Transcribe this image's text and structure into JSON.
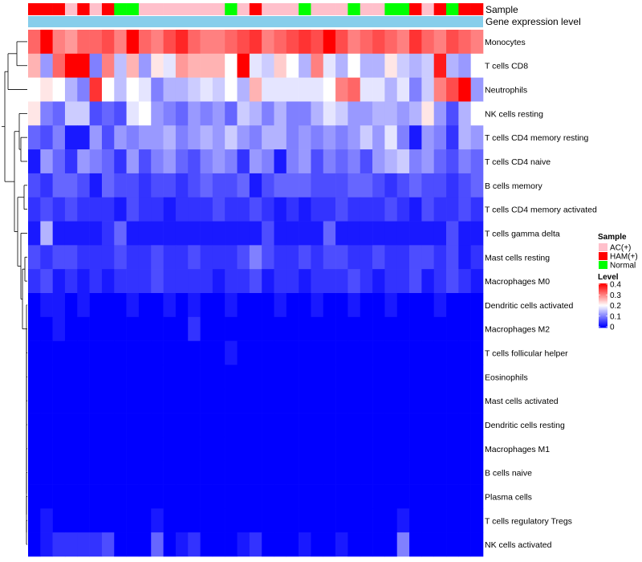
{
  "chart_data": {
    "type": "heatmap",
    "annotations": {
      "sample_label": "Sample",
      "expression_label": "Gene expression level"
    },
    "rows": [
      "Monocytes",
      "T cells CD8",
      "Neutrophils",
      "NK cells resting",
      "T cells CD4 memory resting",
      "T cells CD4 naive",
      "B cells memory",
      "T cells CD4 memory activated",
      "T cells gamma delta",
      "Mast cells resting",
      "Macrophages M0",
      "Dendritic cells activated",
      "Macrophages M2",
      "T cells follicular helper",
      "Eosinophils",
      "Mast cells activated",
      "Dendritic cells resting",
      "Macrophages M1",
      "B cells naive",
      "Plasma cells",
      "T cells regulatory  Tregs",
      "NK cells activated"
    ],
    "sample_groups": [
      "HAM",
      "HAM",
      "HAM",
      "AC",
      "HAM",
      "AC",
      "HAM",
      "N",
      "N",
      "AC",
      "AC",
      "AC",
      "AC",
      "AC",
      "AC",
      "AC",
      "N",
      "AC",
      "HAM",
      "AC",
      "AC",
      "AC",
      "N",
      "AC",
      "AC",
      "AC",
      "N",
      "AC",
      "AC",
      "N",
      "N",
      "HAM",
      "AC",
      "HAM",
      "N",
      "HAM",
      "HAM"
    ],
    "values": [
      [
        0.32,
        0.4,
        0.3,
        0.28,
        0.32,
        0.32,
        0.34,
        0.3,
        0.4,
        0.32,
        0.3,
        0.34,
        0.37,
        0.32,
        0.3,
        0.3,
        0.32,
        0.34,
        0.36,
        0.3,
        0.32,
        0.34,
        0.36,
        0.34,
        0.4,
        0.34,
        0.3,
        0.32,
        0.34,
        0.32,
        0.3,
        0.36,
        0.32,
        0.3,
        0.34,
        0.32,
        0.3
      ],
      [
        0.26,
        0.12,
        0.32,
        0.4,
        0.4,
        0.1,
        0.3,
        0.15,
        0.26,
        0.12,
        0.22,
        0.18,
        0.28,
        0.26,
        0.26,
        0.26,
        0.2,
        0.4,
        0.18,
        0.16,
        0.24,
        0.2,
        0.14,
        0.3,
        0.18,
        0.14,
        0.2,
        0.14,
        0.14,
        0.22,
        0.16,
        0.14,
        0.16,
        0.38,
        0.14,
        0.12,
        0.2
      ],
      [
        0.2,
        0.22,
        0.2,
        0.14,
        0.1,
        0.36,
        0.2,
        0.15,
        0.2,
        0.18,
        0.1,
        0.14,
        0.14,
        0.16,
        0.18,
        0.16,
        0.2,
        0.14,
        0.26,
        0.18,
        0.18,
        0.18,
        0.18,
        0.18,
        0.2,
        0.3,
        0.32,
        0.18,
        0.18,
        0.14,
        0.18,
        0.1,
        0.16,
        0.3,
        0.34,
        0.4,
        0.12
      ],
      [
        0.22,
        0.1,
        0.08,
        0.16,
        0.16,
        0.06,
        0.08,
        0.06,
        0.18,
        0.2,
        0.12,
        0.1,
        0.08,
        0.12,
        0.1,
        0.12,
        0.08,
        0.16,
        0.14,
        0.1,
        0.14,
        0.1,
        0.1,
        0.14,
        0.18,
        0.16,
        0.12,
        0.12,
        0.14,
        0.14,
        0.12,
        0.14,
        0.22,
        0.12,
        0.06,
        0.14,
        0.2
      ],
      [
        0.08,
        0.06,
        0.1,
        0.02,
        0.02,
        0.12,
        0.06,
        0.12,
        0.1,
        0.12,
        0.12,
        0.14,
        0.1,
        0.12,
        0.14,
        0.12,
        0.16,
        0.12,
        0.1,
        0.14,
        0.14,
        0.1,
        0.12,
        0.1,
        0.12,
        0.1,
        0.12,
        0.16,
        0.12,
        0.18,
        0.1,
        0.02,
        0.12,
        0.1,
        0.04,
        0.14,
        0.12
      ],
      [
        0.02,
        0.12,
        0.08,
        0.04,
        0.12,
        0.1,
        0.08,
        0.04,
        0.12,
        0.06,
        0.1,
        0.12,
        0.08,
        0.06,
        0.1,
        0.12,
        0.1,
        0.04,
        0.12,
        0.1,
        0.02,
        0.1,
        0.12,
        0.06,
        0.1,
        0.08,
        0.1,
        0.06,
        0.12,
        0.14,
        0.16,
        0.1,
        0.12,
        0.08,
        0.06,
        0.1,
        0.08
      ],
      [
        0.06,
        0.04,
        0.08,
        0.08,
        0.06,
        0.02,
        0.08,
        0.06,
        0.06,
        0.04,
        0.06,
        0.06,
        0.04,
        0.06,
        0.08,
        0.06,
        0.06,
        0.08,
        0.02,
        0.06,
        0.08,
        0.08,
        0.08,
        0.06,
        0.06,
        0.06,
        0.08,
        0.08,
        0.06,
        0.04,
        0.06,
        0.08,
        0.06,
        0.06,
        0.04,
        0.06,
        0.08
      ],
      [
        0.04,
        0.06,
        0.04,
        0.06,
        0.04,
        0.04,
        0.04,
        0.02,
        0.06,
        0.04,
        0.04,
        0.02,
        0.04,
        0.04,
        0.04,
        0.06,
        0.04,
        0.04,
        0.06,
        0.04,
        0.02,
        0.04,
        0.02,
        0.04,
        0.04,
        0.06,
        0.04,
        0.04,
        0.04,
        0.06,
        0.04,
        0.02,
        0.06,
        0.04,
        0.04,
        0.06,
        0.04
      ],
      [
        0.02,
        0.14,
        0.02,
        0.02,
        0.02,
        0.02,
        0.04,
        0.08,
        0.02,
        0.02,
        0.02,
        0.02,
        0.02,
        0.02,
        0.02,
        0.02,
        0.02,
        0.02,
        0.02,
        0.06,
        0.02,
        0.02,
        0.02,
        0.02,
        0.08,
        0.02,
        0.02,
        0.02,
        0.02,
        0.02,
        0.02,
        0.02,
        0.02,
        0.02,
        0.06,
        0.02,
        0.02
      ],
      [
        0.06,
        0.04,
        0.06,
        0.06,
        0.04,
        0.04,
        0.04,
        0.06,
        0.04,
        0.04,
        0.06,
        0.04,
        0.04,
        0.06,
        0.04,
        0.04,
        0.04,
        0.06,
        0.1,
        0.06,
        0.04,
        0.04,
        0.06,
        0.04,
        0.06,
        0.06,
        0.04,
        0.04,
        0.06,
        0.04,
        0.04,
        0.06,
        0.06,
        0.04,
        0.06,
        0.02,
        0.04
      ],
      [
        0.04,
        0.06,
        0.02,
        0.04,
        0.02,
        0.04,
        0.02,
        0.04,
        0.04,
        0.04,
        0.06,
        0.04,
        0.04,
        0.04,
        0.04,
        0.02,
        0.04,
        0.04,
        0.06,
        0.02,
        0.04,
        0.04,
        0.02,
        0.04,
        0.04,
        0.04,
        0.06,
        0.04,
        0.02,
        0.04,
        0.04,
        0.06,
        0.02,
        0.04,
        0.06,
        0.04,
        0.02
      ],
      [
        0.0,
        0.02,
        0.02,
        0.0,
        0.02,
        0.0,
        0.0,
        0.0,
        0.02,
        0.0,
        0.0,
        0.02,
        0.0,
        0.02,
        0.0,
        0.0,
        0.02,
        0.0,
        0.0,
        0.0,
        0.02,
        0.0,
        0.0,
        0.02,
        0.0,
        0.0,
        0.02,
        0.0,
        0.0,
        0.02,
        0.0,
        0.0,
        0.0,
        0.02,
        0.0,
        0.0,
        0.0
      ],
      [
        0.0,
        0.0,
        0.02,
        0.0,
        0.0,
        0.0,
        0.0,
        0.0,
        0.0,
        0.0,
        0.0,
        0.0,
        0.0,
        0.04,
        0.0,
        0.0,
        0.0,
        0.0,
        0.0,
        0.0,
        0.0,
        0.0,
        0.0,
        0.0,
        0.0,
        0.0,
        0.0,
        0.0,
        0.0,
        0.0,
        0.0,
        0.0,
        0.0,
        0.0,
        0.0,
        0.0,
        0.0
      ],
      [
        0.0,
        0.0,
        0.0,
        0.0,
        0.0,
        0.0,
        0.0,
        0.0,
        0.0,
        0.0,
        0.0,
        0.0,
        0.0,
        0.0,
        0.0,
        0.0,
        0.02,
        0.0,
        0.0,
        0.0,
        0.0,
        0.0,
        0.0,
        0.0,
        0.0,
        0.0,
        0.0,
        0.0,
        0.0,
        0.0,
        0.0,
        0.0,
        0.0,
        0.0,
        0.0,
        0.0,
        0.0
      ],
      [
        0.0,
        0.0,
        0.0,
        0.0,
        0.0,
        0.0,
        0.0,
        0.0,
        0.0,
        0.0,
        0.0,
        0.0,
        0.0,
        0.0,
        0.0,
        0.0,
        0.0,
        0.0,
        0.0,
        0.0,
        0.0,
        0.0,
        0.0,
        0.0,
        0.0,
        0.0,
        0.0,
        0.0,
        0.0,
        0.0,
        0.0,
        0.0,
        0.0,
        0.0,
        0.0,
        0.0,
        0.0
      ],
      [
        0.0,
        0.0,
        0.0,
        0.0,
        0.0,
        0.0,
        0.0,
        0.0,
        0.0,
        0.0,
        0.0,
        0.0,
        0.0,
        0.0,
        0.0,
        0.0,
        0.0,
        0.0,
        0.0,
        0.0,
        0.0,
        0.0,
        0.0,
        0.0,
        0.0,
        0.0,
        0.0,
        0.0,
        0.0,
        0.0,
        0.0,
        0.0,
        0.0,
        0.0,
        0.0,
        0.0,
        0.0
      ],
      [
        0.0,
        0.0,
        0.0,
        0.0,
        0.0,
        0.0,
        0.0,
        0.0,
        0.0,
        0.0,
        0.0,
        0.0,
        0.0,
        0.0,
        0.0,
        0.0,
        0.0,
        0.0,
        0.0,
        0.0,
        0.0,
        0.0,
        0.0,
        0.0,
        0.0,
        0.0,
        0.0,
        0.0,
        0.0,
        0.0,
        0.0,
        0.0,
        0.0,
        0.0,
        0.0,
        0.0,
        0.0
      ],
      [
        0.0,
        0.0,
        0.0,
        0.0,
        0.0,
        0.0,
        0.0,
        0.0,
        0.0,
        0.0,
        0.0,
        0.0,
        0.0,
        0.0,
        0.0,
        0.0,
        0.0,
        0.0,
        0.0,
        0.0,
        0.0,
        0.0,
        0.0,
        0.0,
        0.0,
        0.0,
        0.0,
        0.0,
        0.0,
        0.0,
        0.0,
        0.0,
        0.0,
        0.0,
        0.0,
        0.0,
        0.0
      ],
      [
        0.0,
        0.0,
        0.0,
        0.0,
        0.0,
        0.0,
        0.0,
        0.0,
        0.0,
        0.0,
        0.0,
        0.0,
        0.0,
        0.0,
        0.0,
        0.0,
        0.0,
        0.0,
        0.0,
        0.0,
        0.0,
        0.0,
        0.0,
        0.0,
        0.0,
        0.0,
        0.0,
        0.0,
        0.0,
        0.0,
        0.0,
        0.0,
        0.0,
        0.0,
        0.0,
        0.0,
        0.0
      ],
      [
        0.0,
        0.0,
        0.0,
        0.0,
        0.0,
        0.0,
        0.0,
        0.0,
        0.0,
        0.0,
        0.0,
        0.0,
        0.0,
        0.0,
        0.0,
        0.0,
        0.0,
        0.0,
        0.0,
        0.0,
        0.0,
        0.0,
        0.0,
        0.0,
        0.0,
        0.0,
        0.0,
        0.0,
        0.0,
        0.0,
        0.0,
        0.0,
        0.0,
        0.0,
        0.0,
        0.0,
        0.0
      ],
      [
        0.0,
        0.02,
        0.0,
        0.0,
        0.0,
        0.0,
        0.0,
        0.0,
        0.0,
        0.0,
        0.02,
        0.0,
        0.0,
        0.0,
        0.0,
        0.0,
        0.0,
        0.0,
        0.0,
        0.0,
        0.0,
        0.0,
        0.0,
        0.0,
        0.0,
        0.0,
        0.0,
        0.0,
        0.0,
        0.0,
        0.02,
        0.0,
        0.0,
        0.0,
        0.0,
        0.0,
        0.0
      ],
      [
        0.0,
        0.02,
        0.04,
        0.04,
        0.04,
        0.04,
        0.06,
        0.0,
        0.0,
        0.0,
        0.08,
        0.0,
        0.02,
        0.04,
        0.0,
        0.0,
        0.0,
        0.02,
        0.04,
        0.0,
        0.0,
        0.0,
        0.02,
        0.0,
        0.0,
        0.02,
        0.0,
        0.0,
        0.0,
        0.0,
        0.1,
        0.0,
        0.0,
        0.0,
        0.0,
        0.0,
        0.0
      ]
    ],
    "legend": {
      "sample_title": "Sample",
      "sample_items": [
        {
          "key": "AC",
          "label": "AC(+)",
          "color": "#FFC0CB"
        },
        {
          "key": "HAM",
          "label": "HAM(+)",
          "color": "#FF0000"
        },
        {
          "key": "N",
          "label": "Normal",
          "color": "#00FF00"
        }
      ],
      "level_title": "Level",
      "level_ticks": [
        "0.4",
        "0.3",
        "0.2",
        "0.1",
        "0"
      ],
      "level_range": [
        0,
        0.4
      ]
    },
    "colors": {
      "low": "#0000FF",
      "mid": "#FFFFFF",
      "high": "#FF0000",
      "expression_bar": "#87CEEB"
    }
  }
}
